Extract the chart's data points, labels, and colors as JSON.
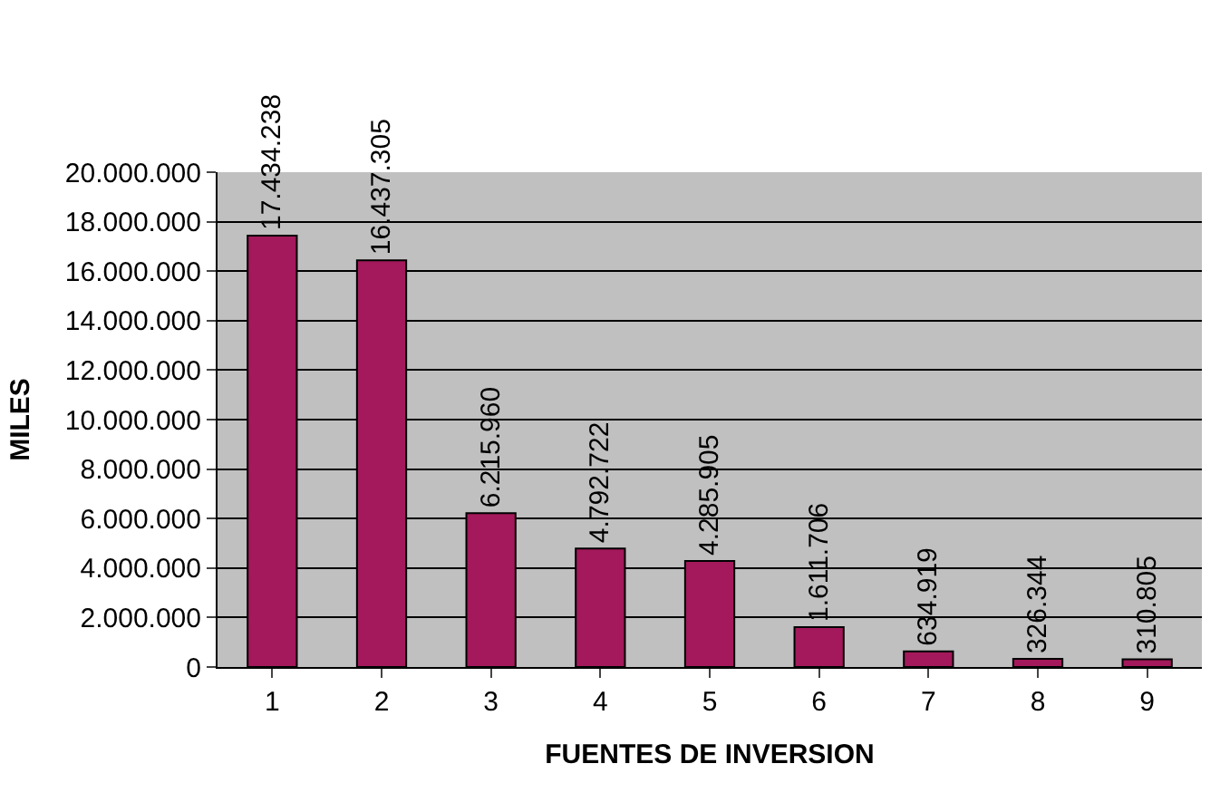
{
  "chart_data": {
    "type": "bar",
    "xlabel": "FUENTES DE INVERSION",
    "ylabel": "MILES",
    "categories": [
      "1",
      "2",
      "3",
      "4",
      "5",
      "6",
      "7",
      "8",
      "9"
    ],
    "values": [
      17434238,
      16437305,
      6215960,
      4792722,
      4285905,
      1611706,
      634919,
      326344,
      310805
    ],
    "value_labels": [
      "17.434.238",
      "16.437.305",
      "6.215.960",
      "4.792.722",
      "4.285.905",
      "1.611.706",
      "634.919",
      "326.344",
      "310.805"
    ],
    "color": "#a3195b",
    "ylim": [
      0,
      20000000
    ],
    "yticks": [
      0,
      {
        "value": 2000000,
        "label": "2.000.000"
      },
      {
        "value": 4000000,
        "label": "4.000.000"
      },
      {
        "value": 6000000,
        "label": "6.000.000"
      },
      {
        "value": 8000000,
        "label": "8.000.000"
      },
      {
        "value": 10000000,
        "label": "10.000.000"
      },
      {
        "value": 12000000,
        "label": "12.000.000"
      },
      {
        "value": 14000000,
        "label": "14.000.000"
      },
      {
        "value": 16000000,
        "label": "16.000.000"
      },
      {
        "value": 18000000,
        "label": "18.000.000"
      },
      {
        "value": 20000000,
        "label": "20.000.000"
      }
    ],
    "grid": "y"
  }
}
